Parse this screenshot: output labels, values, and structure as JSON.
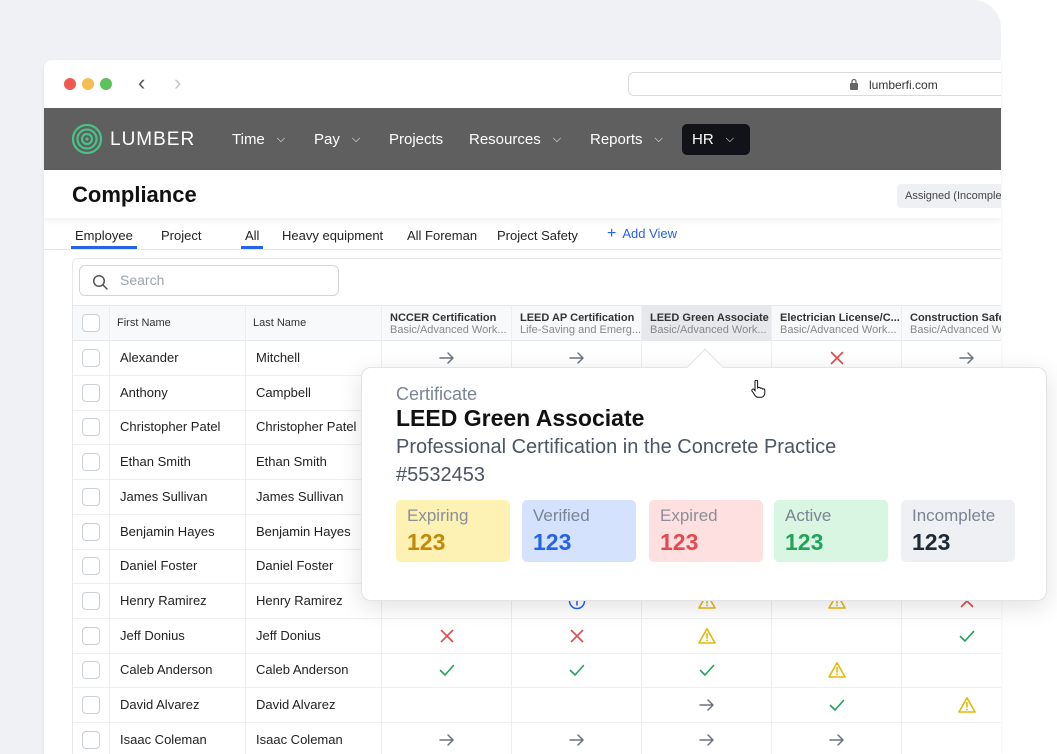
{
  "browser": {
    "url": "lumberfi.com"
  },
  "app": {
    "logo_text": "LUMBER",
    "menu": [
      {
        "label": "Time",
        "chevron": true
      },
      {
        "label": "Pay",
        "chevron": true
      },
      {
        "label": "Projects",
        "chevron": false
      },
      {
        "label": "Resources",
        "chevron": true
      },
      {
        "label": "Reports",
        "chevron": true
      },
      {
        "label": "HR",
        "chevron": true,
        "active": true
      }
    ]
  },
  "page": {
    "title": "Compliance",
    "assigned_filter": "Assigned (Incomplete)"
  },
  "tabs": {
    "primary": [
      {
        "label": "Employee",
        "active": true
      },
      {
        "label": "Project",
        "active": false
      }
    ],
    "views": [
      {
        "label": "All",
        "active": true
      },
      {
        "label": "Heavy equipment",
        "active": false
      },
      {
        "label": "All Foreman",
        "active": false
      },
      {
        "label": "Project Safety",
        "active": false
      }
    ],
    "add_view": "Add View"
  },
  "search": {
    "placeholder": "Search"
  },
  "table": {
    "columns": {
      "first_name": "First Name",
      "last_name": "Last Name",
      "certs": [
        {
          "title": "NCCER Certification",
          "sub": "Basic/Advanced Work..."
        },
        {
          "title": "LEED AP Certification",
          "sub": "Life-Saving and Emerg..."
        },
        {
          "title": "LEED Green Associate",
          "sub": "Basic/Advanced Work...",
          "selected": true
        },
        {
          "title": "Electrician License/C...",
          "sub": "Basic/Advanced Work..."
        },
        {
          "title": "Construction Safety",
          "sub": "Basic/Advanced Work"
        }
      ]
    },
    "rows": [
      {
        "first": "Alexander",
        "last": "Mitchell",
        "status": [
          "arrow",
          "arrow",
          "",
          "x",
          "arrow"
        ]
      },
      {
        "first": "Anthony",
        "last": "Campbell",
        "status": [
          "",
          "",
          "",
          "",
          ""
        ]
      },
      {
        "first": "Christopher Patel",
        "last": "Christopher Patel",
        "status": [
          "",
          "",
          "",
          "",
          ""
        ]
      },
      {
        "first": "Ethan Smith",
        "last": "Ethan Smith",
        "status": [
          "",
          "",
          "",
          "",
          ""
        ]
      },
      {
        "first": "James Sullivan",
        "last": "James Sullivan",
        "status": [
          "",
          "",
          "",
          "",
          ""
        ]
      },
      {
        "first": "Benjamin Hayes",
        "last": "Benjamin Hayes",
        "status": [
          "",
          "",
          "",
          "",
          ""
        ]
      },
      {
        "first": "Daniel Foster",
        "last": "Daniel Foster",
        "status": [
          "",
          "",
          "",
          "",
          ""
        ]
      },
      {
        "first": "Henry Ramirez",
        "last": "Henry Ramirez",
        "status": [
          "",
          "info",
          "warn",
          "warn",
          "x"
        ]
      },
      {
        "first": "Jeff Donius",
        "last": "Jeff Donius",
        "status": [
          "x",
          "x",
          "warn",
          "",
          "check"
        ]
      },
      {
        "first": "Caleb Anderson",
        "last": "Caleb Anderson",
        "status": [
          "check",
          "check",
          "check",
          "warn",
          ""
        ]
      },
      {
        "first": "David Alvarez",
        "last": "David Alvarez",
        "status": [
          "",
          "",
          "arrow",
          "check",
          "warn"
        ]
      },
      {
        "first": "Isaac Coleman",
        "last": "Isaac Coleman",
        "status": [
          "arrow",
          "arrow",
          "arrow",
          "arrow",
          ""
        ]
      }
    ]
  },
  "popover": {
    "label": "Certificate",
    "title": "LEED Green Associate",
    "subtitle": "Professional Certification in the Concrete Practice",
    "number": "#5532453",
    "stats": [
      {
        "label": "Expiring",
        "value": "123",
        "bg": "#fdf1b3",
        "label_color": "#8a8f99",
        "value_color": "#c28a06"
      },
      {
        "label": "Verified",
        "value": "123",
        "bg": "#d4e2fd",
        "label_color": "#7b8494",
        "value_color": "#2563eb"
      },
      {
        "label": "Expired",
        "value": "123",
        "bg": "#fde0df",
        "label_color": "#8a8f99",
        "value_color": "#e5484d"
      },
      {
        "label": "Active",
        "value": "123",
        "bg": "#d8f6e1",
        "label_color": "#7b8494",
        "value_color": "#22a35a"
      },
      {
        "label": "Incomplete",
        "value": "123",
        "bg": "#eef0f3",
        "label_color": "#7b8494",
        "value_color": "#1f2937"
      }
    ]
  },
  "colors": {
    "accent": "#2563eb",
    "appbar": "#5f5f5f",
    "error": "#e5484d",
    "success": "#22a35a",
    "warning": "#e4b80b",
    "neutral": "#6b7280"
  }
}
